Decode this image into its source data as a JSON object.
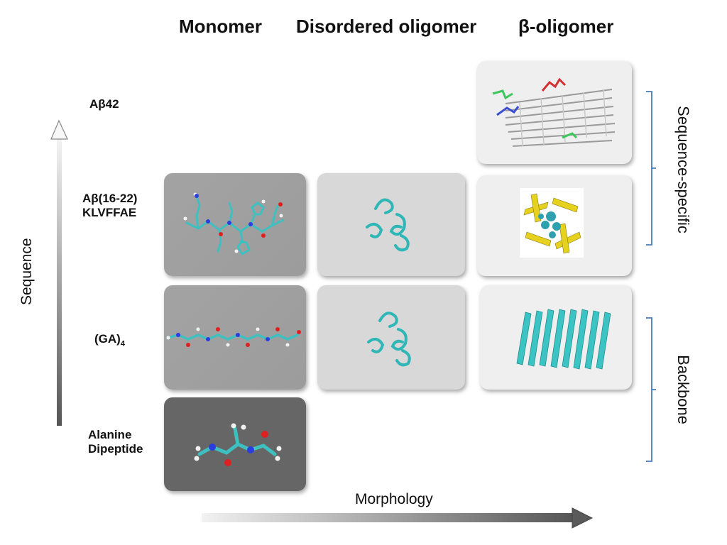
{
  "columns": {
    "monomer": "Monomer",
    "disordered": "Disordered oligomer",
    "beta": "β-oligomer"
  },
  "rows": {
    "abeta42": "Aβ42",
    "abeta16_22_line1": "Aβ(16-22)",
    "abeta16_22_line2": "KLVFFAE",
    "ga4_base": "(GA)",
    "ga4_sub": "4",
    "alanine_line1": "Alanine",
    "alanine_line2": "Dipeptide"
  },
  "axes": {
    "y_label": "Sequence",
    "x_label": "Morphology"
  },
  "groups": {
    "sequence_specific": "Sequence-specific",
    "backbone": "Backbone"
  },
  "colors": {
    "bracket": "#4a7bb7",
    "carbon": "#33bfbf",
    "ribbon": "#3cc4c4",
    "sheet_yellow": "#e6d21e"
  }
}
